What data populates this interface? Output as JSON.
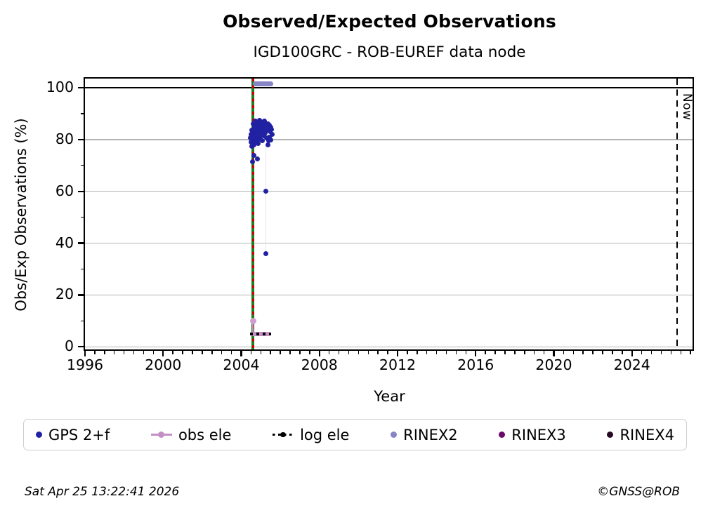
{
  "title": "Observed/Expected Observations",
  "subtitle": "IGD100GRC - ROB-EUREF data node",
  "footer": {
    "timestamp": "Sat Apr 25 13:22:41 2026",
    "copyright": "©GNSS@ROB"
  },
  "colors": {
    "gps": "#2121a3",
    "obs_ele": "#c48fc4",
    "obs_ele_marker": "#cf9ecf",
    "log_ele": "#000000",
    "rinex2": "#8785c5",
    "rinex3": "#6a0a6a",
    "rinex4": "#240a24",
    "green_line": "#1e7e1e",
    "red_dash": "#cc0000",
    "grid": "#b3b3b3",
    "now_line": "#000000",
    "drop_line": "#e2e2ec"
  },
  "legend": {
    "items": [
      {
        "label": "GPS 2+f",
        "marker": "dot",
        "color": "#2121a3"
      },
      {
        "label": "obs ele",
        "marker": "line-dot",
        "color": "#c48fc4"
      },
      {
        "label": "log ele",
        "marker": "dotted-line-dot",
        "color": "#000000"
      },
      {
        "label": "RINEX2",
        "marker": "dot",
        "color": "#8785c5"
      },
      {
        "label": "RINEX3",
        "marker": "dot",
        "color": "#6a0a6a"
      },
      {
        "label": "RINEX4",
        "marker": "dot",
        "color": "#240a24"
      }
    ]
  },
  "chart_data": {
    "type": "scatter",
    "title": "Observed/Expected Observations",
    "subtitle": "IGD100GRC - ROB-EUREF data node",
    "xlabel": "Year",
    "ylabel": "Obs/Exp Observations (%)",
    "xlim": [
      1996,
      2027.1
    ],
    "ylim": [
      -1,
      103.5
    ],
    "x_major_ticks": [
      1996,
      2000,
      2004,
      2008,
      2012,
      2016,
      2020,
      2024
    ],
    "x_minor_step": 0.5,
    "y_major_ticks": [
      0,
      20,
      40,
      60,
      80,
      100
    ],
    "y_minor_ticks": [
      10,
      30,
      50,
      70,
      90
    ],
    "grid_y": [
      0,
      20,
      40,
      60,
      80
    ],
    "legend_position": "bottom",
    "reference_lines": {
      "hundred_percent": {
        "y": 100,
        "style": "solid",
        "color": "#000000"
      },
      "station_green": {
        "x": 2004.6,
        "style": "solid",
        "color": "#1e7e1e"
      },
      "station_red": {
        "x": 2004.6,
        "style": "dashed",
        "color": "#cc0000"
      },
      "now": {
        "x": 2026.31,
        "style": "dashed",
        "color": "#000000",
        "label": "Now"
      }
    },
    "series": [
      {
        "name": "GPS 2+f",
        "type": "scatter",
        "color": "#2121a3",
        "points": [
          [
            2004.47,
            80.5
          ],
          [
            2004.5,
            82.0
          ],
          [
            2004.52,
            79.0
          ],
          [
            2004.55,
            83.5
          ],
          [
            2004.55,
            77.5
          ],
          [
            2004.58,
            81.0
          ],
          [
            2004.58,
            71.3
          ],
          [
            2004.6,
            84.0
          ],
          [
            2004.6,
            79.5
          ],
          [
            2004.62,
            86.0
          ],
          [
            2004.63,
            73.9
          ],
          [
            2004.65,
            82.5
          ],
          [
            2004.65,
            78.0
          ],
          [
            2004.66,
            83.5
          ],
          [
            2004.68,
            85.0
          ],
          [
            2004.68,
            81.5
          ],
          [
            2004.7,
            80.0
          ],
          [
            2004.7,
            83.0
          ],
          [
            2004.72,
            87.0
          ],
          [
            2004.72,
            84.8
          ],
          [
            2004.74,
            82.8
          ],
          [
            2004.75,
            81.5
          ],
          [
            2004.75,
            84.5
          ],
          [
            2004.78,
            79.0
          ],
          [
            2004.78,
            85.5
          ],
          [
            2004.8,
            82.5
          ],
          [
            2004.8,
            86.5
          ],
          [
            2004.81,
            72.6
          ],
          [
            2004.82,
            83.8
          ],
          [
            2004.83,
            80.5
          ],
          [
            2004.85,
            84.0
          ],
          [
            2004.86,
            85.8
          ],
          [
            2004.88,
            78.5
          ],
          [
            2004.9,
            85.5
          ],
          [
            2004.9,
            83.2
          ],
          [
            2004.92,
            81.0
          ],
          [
            2004.93,
            85.2
          ],
          [
            2004.95,
            83.5
          ],
          [
            2004.95,
            87.5
          ],
          [
            2004.97,
            84.8
          ],
          [
            2004.98,
            80.0
          ],
          [
            2005.0,
            84.5
          ],
          [
            2005.0,
            86.8
          ],
          [
            2005.02,
            82.0
          ],
          [
            2005.03,
            83.0
          ],
          [
            2005.05,
            86.0
          ],
          [
            2005.07,
            84.9
          ],
          [
            2005.08,
            79.5
          ],
          [
            2005.1,
            83.0
          ],
          [
            2005.1,
            86.5
          ],
          [
            2005.12,
            85.5
          ],
          [
            2005.13,
            83.9
          ],
          [
            2005.15,
            81.5
          ],
          [
            2005.17,
            85.9
          ],
          [
            2005.18,
            84.0
          ],
          [
            2005.2,
            87.0
          ],
          [
            2005.2,
            84.2
          ],
          [
            2005.22,
            82.5
          ],
          [
            2005.24,
            86.2
          ],
          [
            2005.25,
            85.0
          ],
          [
            2005.27,
            60.0
          ],
          [
            2005.27,
            36.0
          ],
          [
            2005.28,
            80.5
          ],
          [
            2005.3,
            83.5
          ],
          [
            2005.35,
            86.0
          ],
          [
            2005.35,
            78.0
          ],
          [
            2005.38,
            84.5
          ],
          [
            2005.4,
            79.5
          ],
          [
            2005.42,
            81.0
          ],
          [
            2005.45,
            85.5
          ],
          [
            2005.48,
            83.0
          ],
          [
            2005.5,
            84.8
          ],
          [
            2005.52,
            79.8
          ],
          [
            2005.55,
            84.0
          ],
          [
            2005.58,
            82.0
          ]
        ]
      },
      {
        "name": "obs ele",
        "type": "line+marker",
        "color": "#c48fc4",
        "marker_points": [
          [
            2004.6,
            10.0
          ]
        ],
        "segments": [
          {
            "x1": 2004.5,
            "x2": 2005.5,
            "y": 5.0
          }
        ]
      },
      {
        "name": "log ele",
        "type": "dotted-line",
        "color": "#000000",
        "segments": [
          {
            "x1": 2004.45,
            "x2": 2005.52,
            "y": 5.0
          }
        ]
      },
      {
        "name": "RINEX2",
        "type": "bar-segment",
        "color": "#8785c5",
        "segments": [
          {
            "x1": 2004.6,
            "x2": 2005.65,
            "y": 101.5
          }
        ]
      },
      {
        "name": "RINEX3",
        "type": "bar-segment",
        "color": "#6a0a6a",
        "segments": []
      },
      {
        "name": "RINEX4",
        "type": "bar-segment",
        "color": "#240a24",
        "segments": []
      }
    ],
    "drop_lines": [
      {
        "x": 2005.27,
        "y1": 77.5,
        "y2": 36.0
      },
      {
        "x": 2004.6,
        "y1": 68.0,
        "y2": 10.5
      }
    ]
  }
}
